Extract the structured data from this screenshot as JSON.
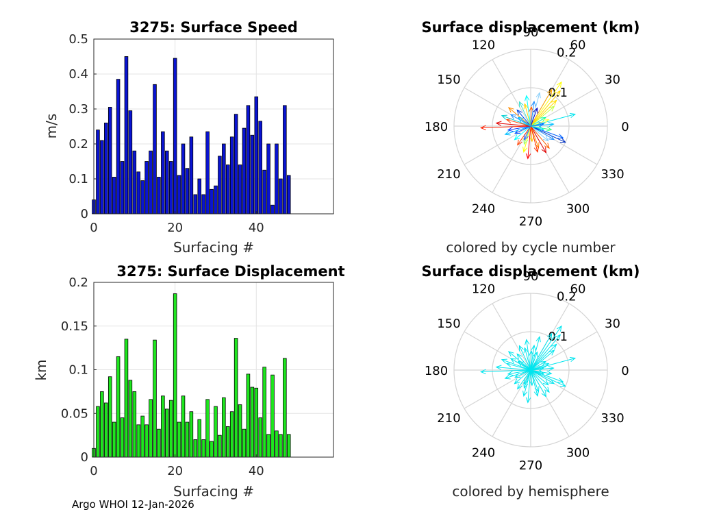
{
  "footer_text": "Argo WHOI 12-Jan-2026",
  "chart_data": [
    {
      "id": "speed",
      "type": "bar",
      "title": "3275: Surface Speed",
      "xlabel": "Surfacing #",
      "ylabel": "m/s",
      "xlim": [
        0,
        59
      ],
      "ylim": [
        0,
        0.5
      ],
      "xticks": [
        0,
        20,
        40
      ],
      "yticks": [
        0,
        0.1,
        0.2,
        0.3,
        0.4,
        0.5
      ],
      "ytick_labels": [
        "0",
        "0.1",
        "0.2",
        "0.3",
        "0.4",
        "0.5"
      ],
      "grid": true,
      "bar_color": "#0a14d2",
      "x": [
        0,
        1,
        2,
        3,
        4,
        5,
        6,
        7,
        8,
        9,
        10,
        11,
        12,
        13,
        14,
        15,
        16,
        17,
        18,
        19,
        20,
        21,
        22,
        23,
        24,
        25,
        26,
        27,
        28,
        29,
        30,
        31,
        32,
        33,
        34,
        35,
        36,
        37,
        38,
        39,
        40,
        41,
        42,
        43,
        44,
        45,
        46,
        47,
        48
      ],
      "values": [
        0.04,
        0.24,
        0.21,
        0.26,
        0.305,
        0.105,
        0.385,
        0.15,
        0.45,
        0.295,
        0.18,
        0.12,
        0.095,
        0.15,
        0.18,
        0.37,
        0.105,
        0.235,
        0.18,
        0.15,
        0.445,
        0.11,
        0.2,
        0.13,
        0.22,
        0.055,
        0.1,
        0.055,
        0.235,
        0.07,
        0.08,
        0.165,
        0.2,
        0.14,
        0.22,
        0.285,
        0.14,
        0.245,
        0.31,
        0.225,
        0.335,
        0.265,
        0.125,
        0.2,
        0.025,
        0.2,
        0.1,
        0.31,
        0.11
      ]
    },
    {
      "id": "displacement",
      "type": "bar",
      "title": "3275: Surface Displacement",
      "xlabel": "Surfacing #",
      "ylabel": "km",
      "xlim": [
        0,
        59
      ],
      "ylim": [
        0,
        0.2
      ],
      "xticks": [
        0,
        20,
        40
      ],
      "yticks": [
        0,
        0.05,
        0.1,
        0.15,
        0.2
      ],
      "ytick_labels": [
        "0",
        "0.05",
        "0.1",
        "0.15",
        "0.2"
      ],
      "grid": true,
      "bar_color": "#1ee61e",
      "x": [
        0,
        1,
        2,
        3,
        4,
        5,
        6,
        7,
        8,
        9,
        10,
        11,
        12,
        13,
        14,
        15,
        16,
        17,
        18,
        19,
        20,
        21,
        22,
        23,
        24,
        25,
        26,
        27,
        28,
        29,
        30,
        31,
        32,
        33,
        34,
        35,
        36,
        37,
        38,
        39,
        40,
        41,
        42,
        43,
        44,
        45,
        46,
        47,
        48
      ],
      "values": [
        0.01,
        0.058,
        0.075,
        0.062,
        0.092,
        0.04,
        0.115,
        0.045,
        0.135,
        0.088,
        0.075,
        0.037,
        0.047,
        0.037,
        0.066,
        0.134,
        0.032,
        0.07,
        0.055,
        0.065,
        0.187,
        0.04,
        0.07,
        0.04,
        0.052,
        0.02,
        0.043,
        0.02,
        0.066,
        0.018,
        0.058,
        0.025,
        0.068,
        0.035,
        0.052,
        0.136,
        0.06,
        0.032,
        0.095,
        0.08,
        0.079,
        0.045,
        0.103,
        0.026,
        0.094,
        0.03,
        0.026,
        0.113,
        0.026
      ]
    },
    {
      "id": "polar-cycle",
      "type": "polar",
      "title": "Surface displacement (km)",
      "caption": "colored by cycle number",
      "rmax": 0.2,
      "radial_ticks": [
        "0.1",
        "0.2"
      ],
      "angle_ticks": [
        0,
        30,
        60,
        90,
        120,
        150,
        180,
        210,
        240,
        270,
        300,
        330
      ],
      "angle_tick_labels": [
        "0",
        "30",
        "60",
        "90",
        "120",
        "150",
        "180",
        "210",
        "240",
        "270",
        "300",
        "330"
      ],
      "coloring": "cycle colormap",
      "vectors": [
        {
          "angle": 55,
          "r": 0.14,
          "color": "#ffff00"
        },
        {
          "angle": 50,
          "r": 0.12,
          "color": "#ffd700"
        },
        {
          "angle": 60,
          "r": 0.11,
          "color": "#ffa500"
        },
        {
          "angle": 45,
          "r": 0.095,
          "color": "#ffe000"
        },
        {
          "angle": 40,
          "r": 0.08,
          "color": "#c0ff40"
        },
        {
          "angle": 15,
          "r": 0.12,
          "color": "#00e5ee"
        },
        {
          "angle": 5,
          "r": 0.06,
          "color": "#00bfff"
        },
        {
          "angle": 350,
          "r": 0.055,
          "color": "#40ff80"
        },
        {
          "angle": 340,
          "r": 0.09,
          "color": "#0060ff"
        },
        {
          "angle": 335,
          "r": 0.1,
          "color": "#0030c0"
        },
        {
          "angle": 330,
          "r": 0.07,
          "color": "#1e90ff"
        },
        {
          "angle": 320,
          "r": 0.06,
          "color": "#87cefa"
        },
        {
          "angle": 310,
          "r": 0.075,
          "color": "#ff6000"
        },
        {
          "angle": 300,
          "r": 0.08,
          "color": "#e00000"
        },
        {
          "angle": 290,
          "r": 0.06,
          "color": "#ff8000"
        },
        {
          "angle": 275,
          "r": 0.04,
          "color": "#ffc000"
        },
        {
          "angle": 265,
          "r": 0.085,
          "color": "#ff0000"
        },
        {
          "angle": 255,
          "r": 0.07,
          "color": "#ffff00"
        },
        {
          "angle": 250,
          "r": 0.05,
          "color": "#a0ff60"
        },
        {
          "angle": 235,
          "r": 0.06,
          "color": "#ff4000"
        },
        {
          "angle": 220,
          "r": 0.055,
          "color": "#00ffff"
        },
        {
          "angle": 205,
          "r": 0.045,
          "color": "#0050ff"
        },
        {
          "angle": 198,
          "r": 0.07,
          "color": "#00bfff"
        },
        {
          "angle": 190,
          "r": 0.06,
          "color": "#1040ff"
        },
        {
          "angle": 182,
          "r": 0.13,
          "color": "#ff2000"
        },
        {
          "angle": 175,
          "r": 0.09,
          "color": "#e00000"
        },
        {
          "angle": 165,
          "r": 0.065,
          "color": "#ff4500"
        },
        {
          "angle": 160,
          "r": 0.08,
          "color": "#00ced1"
        },
        {
          "angle": 150,
          "r": 0.06,
          "color": "#1e90ff"
        },
        {
          "angle": 140,
          "r": 0.075,
          "color": "#ff8c00"
        },
        {
          "angle": 130,
          "r": 0.055,
          "color": "#0040e0"
        },
        {
          "angle": 115,
          "r": 0.07,
          "color": "#40e0d0"
        },
        {
          "angle": 105,
          "r": 0.06,
          "color": "#ffd700"
        },
        {
          "angle": 98,
          "r": 0.08,
          "color": "#00ffff"
        },
        {
          "angle": 88,
          "r": 0.05,
          "color": "#ff6000"
        },
        {
          "angle": 82,
          "r": 0.065,
          "color": "#1e90ff"
        },
        {
          "angle": 75,
          "r": 0.09,
          "color": "#87cefa"
        },
        {
          "angle": 70,
          "r": 0.05,
          "color": "#0000c0"
        },
        {
          "angle": 30,
          "r": 0.045,
          "color": "#00ffaa"
        },
        {
          "angle": 20,
          "r": 0.05,
          "color": "#ffff40"
        },
        {
          "angle": 345,
          "r": 0.035,
          "color": "#00e5ee"
        },
        {
          "angle": 285,
          "r": 0.07,
          "color": "#ff3000"
        },
        {
          "angle": 245,
          "r": 0.04,
          "color": "#3060ff"
        },
        {
          "angle": 145,
          "r": 0.04,
          "color": "#00bfff"
        },
        {
          "angle": 10,
          "r": 0.035,
          "color": "#0070ff"
        }
      ]
    },
    {
      "id": "polar-hemisphere",
      "type": "polar",
      "title": "Surface displacement (km)",
      "caption": "colored by hemisphere",
      "rmax": 0.2,
      "radial_ticks": [
        "0.1",
        "0.2"
      ],
      "angle_ticks": [
        0,
        30,
        60,
        90,
        120,
        150,
        180,
        210,
        240,
        270,
        300,
        330
      ],
      "angle_tick_labels": [
        "0",
        "30",
        "60",
        "90",
        "120",
        "150",
        "180",
        "210",
        "240",
        "270",
        "300",
        "330"
      ],
      "coloring": "single color",
      "vector_color": "#00e5ee",
      "vectors": [
        {
          "angle": 55,
          "r": 0.14
        },
        {
          "angle": 50,
          "r": 0.12
        },
        {
          "angle": 60,
          "r": 0.11
        },
        {
          "angle": 45,
          "r": 0.095
        },
        {
          "angle": 40,
          "r": 0.08
        },
        {
          "angle": 15,
          "r": 0.12
        },
        {
          "angle": 5,
          "r": 0.06
        },
        {
          "angle": 350,
          "r": 0.055
        },
        {
          "angle": 340,
          "r": 0.09
        },
        {
          "angle": 335,
          "r": 0.1
        },
        {
          "angle": 330,
          "r": 0.07
        },
        {
          "angle": 320,
          "r": 0.06
        },
        {
          "angle": 310,
          "r": 0.075
        },
        {
          "angle": 300,
          "r": 0.08
        },
        {
          "angle": 290,
          "r": 0.06
        },
        {
          "angle": 275,
          "r": 0.04
        },
        {
          "angle": 265,
          "r": 0.085
        },
        {
          "angle": 255,
          "r": 0.07
        },
        {
          "angle": 250,
          "r": 0.05
        },
        {
          "angle": 235,
          "r": 0.06
        },
        {
          "angle": 220,
          "r": 0.055
        },
        {
          "angle": 205,
          "r": 0.045
        },
        {
          "angle": 198,
          "r": 0.07
        },
        {
          "angle": 190,
          "r": 0.06
        },
        {
          "angle": 182,
          "r": 0.13
        },
        {
          "angle": 175,
          "r": 0.09
        },
        {
          "angle": 165,
          "r": 0.065
        },
        {
          "angle": 160,
          "r": 0.08
        },
        {
          "angle": 150,
          "r": 0.06
        },
        {
          "angle": 140,
          "r": 0.075
        },
        {
          "angle": 130,
          "r": 0.055
        },
        {
          "angle": 115,
          "r": 0.07
        },
        {
          "angle": 105,
          "r": 0.06
        },
        {
          "angle": 98,
          "r": 0.08
        },
        {
          "angle": 88,
          "r": 0.05
        },
        {
          "angle": 82,
          "r": 0.065
        },
        {
          "angle": 75,
          "r": 0.09
        },
        {
          "angle": 70,
          "r": 0.05
        },
        {
          "angle": 30,
          "r": 0.045
        },
        {
          "angle": 20,
          "r": 0.05
        },
        {
          "angle": 345,
          "r": 0.035
        },
        {
          "angle": 285,
          "r": 0.07
        },
        {
          "angle": 245,
          "r": 0.04
        },
        {
          "angle": 145,
          "r": 0.04
        },
        {
          "angle": 10,
          "r": 0.035
        }
      ]
    }
  ]
}
